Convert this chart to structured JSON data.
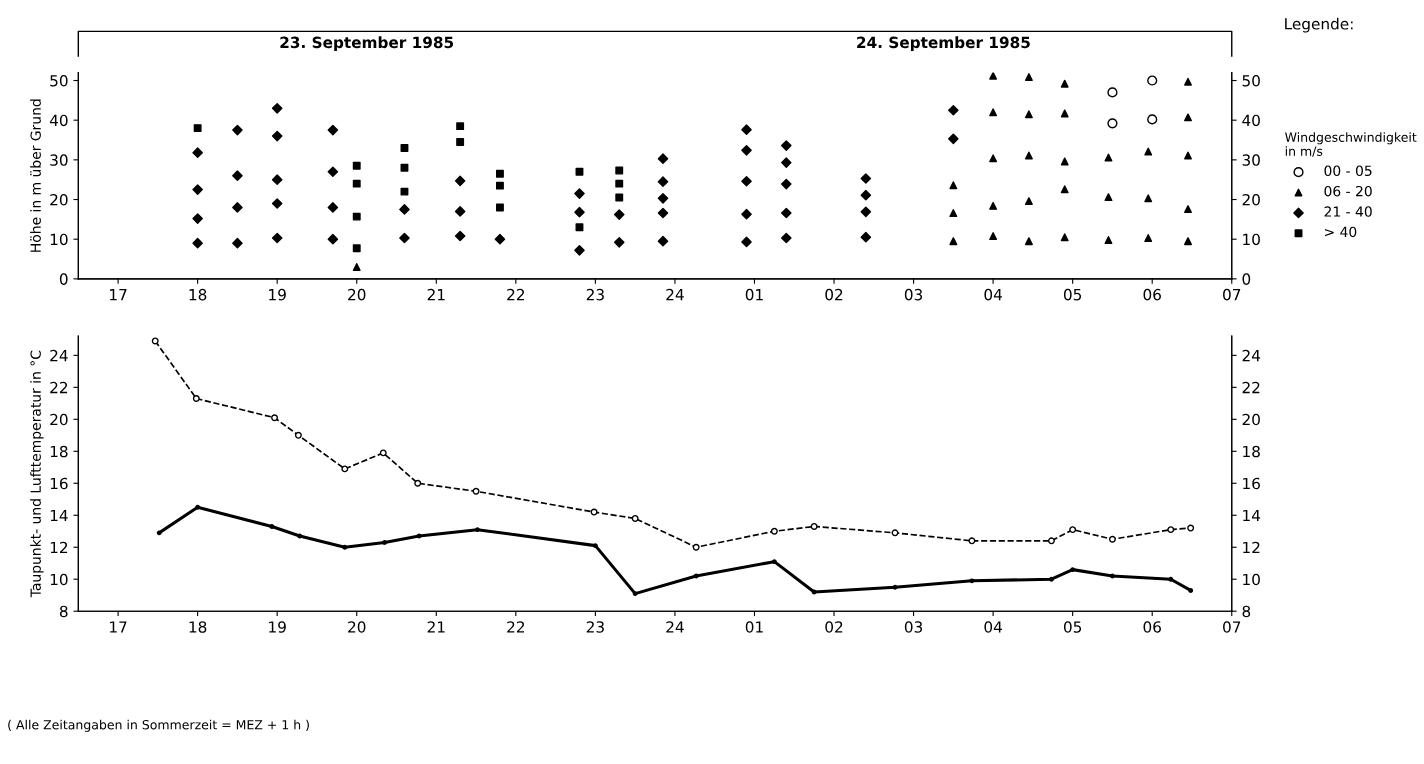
{
  "chart_data": [
    {
      "type": "scatter",
      "ylabel": "Höhe in m über Grund",
      "legend_title": "Windgeschwindigkeit in m/s",
      "legend": "right",
      "annotations": [
        "23. September 1985",
        "24. September 1985",
        "Legende:"
      ],
      "xlim": [
        "1985-09-23T16:30",
        "1985-09-24T07:00"
      ],
      "xticks": [
        {
          "value": "1985-09-23T17:00",
          "label": "17"
        },
        {
          "value": "1985-09-23T18:00",
          "label": "18"
        },
        {
          "value": "1985-09-23T19:00",
          "label": "19"
        },
        {
          "value": "1985-09-23T20:00",
          "label": "20"
        },
        {
          "value": "1985-09-23T21:00",
          "label": "21"
        },
        {
          "value": "1985-09-23T22:00",
          "label": "22"
        },
        {
          "value": "1985-09-23T23:00",
          "label": "23"
        },
        {
          "value": "1985-09-24T00:00",
          "label": "24"
        },
        {
          "value": "1985-09-24T01:00",
          "label": "01"
        },
        {
          "value": "1985-09-24T02:00",
          "label": "02"
        },
        {
          "value": "1985-09-24T03:00",
          "label": "03"
        },
        {
          "value": "1985-09-24T04:00",
          "label": "04"
        },
        {
          "value": "1985-09-24T05:00",
          "label": "05"
        },
        {
          "value": "1985-09-24T06:00",
          "label": "06"
        },
        {
          "value": "1985-09-24T07:00",
          "label": "07"
        }
      ],
      "ylim": [
        0,
        52
      ],
      "yticks": [
        0,
        10,
        20,
        30,
        40,
        50
      ],
      "y2lim": [
        0,
        52
      ],
      "y2ticks": [
        0,
        10,
        20,
        30,
        40,
        50
      ],
      "series": [
        {
          "name": "00 - 05",
          "color": "#000000",
          "marker": "circle",
          "x": [
            "1985-09-24T05:30",
            "1985-09-24T05:30",
            "1985-09-24T06:00",
            "1985-09-24T06:00"
          ],
          "values": [
            47.0,
            39.2,
            50.0,
            40.2
          ]
        },
        {
          "name": "06 - 20",
          "color": "#000000",
          "marker": "triangle",
          "x": [
            "1985-09-23T20:00",
            "1985-09-24T03:30",
            "1985-09-24T03:30",
            "1985-09-24T03:30",
            "1985-09-24T04:00",
            "1985-09-24T04:00",
            "1985-09-24T04:00",
            "1985-09-24T04:00",
            "1985-09-24T04:00",
            "1985-09-24T04:27",
            "1985-09-24T04:27",
            "1985-09-24T04:27",
            "1985-09-24T04:27",
            "1985-09-24T04:27",
            "1985-09-24T04:54",
            "1985-09-24T04:54",
            "1985-09-24T04:54",
            "1985-09-24T04:54",
            "1985-09-24T04:54",
            "1985-09-24T05:27",
            "1985-09-24T05:27",
            "1985-09-24T05:27",
            "1985-09-24T05:57",
            "1985-09-24T05:57",
            "1985-09-24T05:57",
            "1985-09-24T06:27",
            "1985-09-24T06:27",
            "1985-09-24T06:27",
            "1985-09-24T06:27",
            "1985-09-24T06:27"
          ],
          "values": [
            3.0,
            23.6,
            16.6,
            9.5,
            51.2,
            42.0,
            30.4,
            18.4,
            10.8,
            50.9,
            41.5,
            31.1,
            19.6,
            9.5,
            49.2,
            41.7,
            29.6,
            22.6,
            10.5,
            30.6,
            20.6,
            9.8,
            32.1,
            20.3,
            10.3,
            49.7,
            40.7,
            31.1,
            17.6,
            9.5
          ]
        },
        {
          "name": "21 - 40",
          "color": "#000000",
          "marker": "diamond",
          "x": [
            "1985-09-23T18:00",
            "1985-09-23T18:00",
            "1985-09-23T18:00",
            "1985-09-23T18:00",
            "1985-09-23T18:30",
            "1985-09-23T18:30",
            "1985-09-23T18:30",
            "1985-09-23T18:30",
            "1985-09-23T19:00",
            "1985-09-23T19:00",
            "1985-09-23T19:00",
            "1985-09-23T19:00",
            "1985-09-23T19:00",
            "1985-09-23T19:42",
            "1985-09-23T19:42",
            "1985-09-23T19:42",
            "1985-09-23T19:42",
            "1985-09-23T20:36",
            "1985-09-23T20:36",
            "1985-09-23T21:18",
            "1985-09-23T21:18",
            "1985-09-23T21:18",
            "1985-09-23T21:48",
            "1985-09-23T22:48",
            "1985-09-23T22:48",
            "1985-09-23T22:48",
            "1985-09-23T23:18",
            "1985-09-23T23:18",
            "1985-09-23T23:51",
            "1985-09-23T23:51",
            "1985-09-23T23:51",
            "1985-09-23T23:51",
            "1985-09-23T23:51",
            "1985-09-24T00:54",
            "1985-09-24T00:54",
            "1985-09-24T00:54",
            "1985-09-24T00:54",
            "1985-09-24T00:54",
            "1985-09-24T01:24",
            "1985-09-24T01:24",
            "1985-09-24T01:24",
            "1985-09-24T01:24",
            "1985-09-24T01:24",
            "1985-09-24T02:24",
            "1985-09-24T02:24",
            "1985-09-24T02:24",
            "1985-09-24T02:24",
            "1985-09-24T03:30",
            "1985-09-24T03:30"
          ],
          "values": [
            31.8,
            22.5,
            15.2,
            9.0,
            37.5,
            26.0,
            18.0,
            9.0,
            43.0,
            36.0,
            25.0,
            19.0,
            10.3,
            37.5,
            27.0,
            18.0,
            10.0,
            17.5,
            10.3,
            24.7,
            17.0,
            10.8,
            10.0,
            21.5,
            16.8,
            7.2,
            16.2,
            9.2,
            30.3,
            24.5,
            20.3,
            16.6,
            9.5,
            37.6,
            32.4,
            24.6,
            16.3,
            9.3,
            33.6,
            29.3,
            23.9,
            16.6,
            10.3,
            25.3,
            21.1,
            16.9,
            10.5,
            42.5,
            35.3
          ]
        },
        {
          "name": "> 40",
          "color": "#000000",
          "marker": "square",
          "x": [
            "1985-09-23T18:00",
            "1985-09-23T20:00",
            "1985-09-23T20:00",
            "1985-09-23T20:00",
            "1985-09-23T20:00",
            "1985-09-23T20:36",
            "1985-09-23T20:36",
            "1985-09-23T20:36",
            "1985-09-23T21:18",
            "1985-09-23T21:18",
            "1985-09-23T21:48",
            "1985-09-23T21:48",
            "1985-09-23T21:48",
            "1985-09-23T22:48",
            "1985-09-23T22:48",
            "1985-09-23T23:18",
            "1985-09-23T23:18",
            "1985-09-23T23:18"
          ],
          "values": [
            38.0,
            28.5,
            24.0,
            15.7,
            7.7,
            33.0,
            28.0,
            22.0,
            38.5,
            34.5,
            26.5,
            23.5,
            18.0,
            27.0,
            13.0,
            27.3,
            24.0,
            20.5
          ]
        }
      ]
    },
    {
      "type": "line",
      "ylabel": "Taupunkt- und Lufttemperatur in °C",
      "annotations": [
        "( Alle Zeitangaben in Sommerzeit = MEZ + 1 h )"
      ],
      "xlim": [
        "1985-09-23T16:30",
        "1985-09-24T07:00"
      ],
      "xticks": [
        {
          "value": "1985-09-23T17:00",
          "label": "17"
        },
        {
          "value": "1985-09-23T18:00",
          "label": "18"
        },
        {
          "value": "1985-09-23T19:00",
          "label": "19"
        },
        {
          "value": "1985-09-23T20:00",
          "label": "20"
        },
        {
          "value": "1985-09-23T21:00",
          "label": "21"
        },
        {
          "value": "1985-09-23T22:00",
          "label": "22"
        },
        {
          "value": "1985-09-23T23:00",
          "label": "23"
        },
        {
          "value": "1985-09-24T00:00",
          "label": "24"
        },
        {
          "value": "1985-09-24T01:00",
          "label": "01"
        },
        {
          "value": "1985-09-24T02:00",
          "label": "02"
        },
        {
          "value": "1985-09-24T03:00",
          "label": "03"
        },
        {
          "value": "1985-09-24T04:00",
          "label": "04"
        },
        {
          "value": "1985-09-24T05:00",
          "label": "05"
        },
        {
          "value": "1985-09-24T06:00",
          "label": "06"
        },
        {
          "value": "1985-09-24T07:00",
          "label": "07"
        }
      ],
      "ylim": [
        8,
        25.2
      ],
      "yticks": [
        8,
        10,
        12,
        14,
        16,
        18,
        20,
        22,
        24
      ],
      "y2lim": [
        8,
        25.2
      ],
      "y2ticks": [
        8,
        10,
        12,
        14,
        16,
        18,
        20,
        22,
        24
      ],
      "series": [
        {
          "color": "#000000",
          "line_style": "dashed",
          "marker": "circle",
          "x": [
            "1985-09-23T17:28",
            "1985-09-23T17:59",
            "1985-09-23T18:58",
            "1985-09-23T19:16",
            "1985-09-23T19:51",
            "1985-09-23T20:20",
            "1985-09-23T20:46",
            "1985-09-23T21:30",
            "1985-09-23T22:59",
            "1985-09-23T23:30",
            "1985-09-24T00:16",
            "1985-09-24T01:15",
            "1985-09-24T01:45",
            "1985-09-24T02:46",
            "1985-09-24T03:44",
            "1985-09-24T04:44",
            "1985-09-24T05:00",
            "1985-09-24T05:30",
            "1985-09-24T06:14",
            "1985-09-24T06:29"
          ],
          "values": [
            24.9,
            21.3,
            20.1,
            19.0,
            16.9,
            17.9,
            16.0,
            15.5,
            14.2,
            13.8,
            12.0,
            13.0,
            13.3,
            12.9,
            12.4,
            12.4,
            13.1,
            12.5,
            13.1,
            13.2
          ]
        },
        {
          "color": "#000000",
          "line_style": "solid",
          "marker": "circle",
          "x": [
            "1985-09-23T17:31",
            "1985-09-23T18:00",
            "1985-09-23T18:56",
            "1985-09-23T19:17",
            "1985-09-23T19:51",
            "1985-09-23T20:21",
            "1985-09-23T20:47",
            "1985-09-23T21:31",
            "1985-09-23T23:00",
            "1985-09-23T23:30",
            "1985-09-24T00:16",
            "1985-09-24T01:15",
            "1985-09-24T01:45",
            "1985-09-24T02:46",
            "1985-09-24T03:44",
            "1985-09-24T04:44",
            "1985-09-24T05:00",
            "1985-09-24T05:30",
            "1985-09-24T06:14",
            "1985-09-24T06:29"
          ],
          "values": [
            12.9,
            14.5,
            13.3,
            12.7,
            12.0,
            12.3,
            12.7,
            13.1,
            12.1,
            9.1,
            10.2,
            11.1,
            9.2,
            9.5,
            9.9,
            10.0,
            10.6,
            10.2,
            10.0,
            9.3
          ]
        }
      ]
    }
  ]
}
